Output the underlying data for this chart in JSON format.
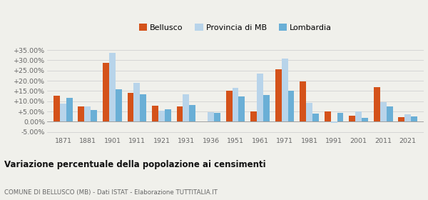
{
  "years": [
    1871,
    1881,
    1901,
    1911,
    1921,
    1931,
    1936,
    1951,
    1961,
    1971,
    1981,
    1991,
    2001,
    2011,
    2021
  ],
  "bellusco": [
    12.7,
    7.6,
    28.8,
    14.2,
    7.7,
    7.5,
    0.3,
    15.3,
    5.0,
    25.8,
    19.7,
    5.1,
    2.8,
    16.9,
    2.1
  ],
  "provincia_mb": [
    9.0,
    7.6,
    33.8,
    19.0,
    5.3,
    13.5,
    4.6,
    16.5,
    23.5,
    30.8,
    9.2,
    -0.5,
    5.0,
    9.5,
    3.5
  ],
  "lombardia": [
    11.7,
    5.7,
    15.7,
    13.3,
    6.0,
    8.0,
    4.4,
    12.5,
    12.9,
    15.3,
    4.1,
    4.3,
    1.9,
    7.3,
    2.7
  ],
  "bar_width": 0.26,
  "color_bellusco": "#d4521a",
  "color_provincia": "#b8d4ea",
  "color_lombardia": "#6aafd6",
  "ylim_min": -7.0,
  "ylim_max": 38.0,
  "yticks": [
    -5,
    0,
    5,
    10,
    15,
    20,
    25,
    30,
    35
  ],
  "title": "Variazione percentuale della popolazione ai censimenti",
  "subtitle": "COMUNE DI BELLUSCO (MB) - Dati ISTAT - Elaborazione TUTTITALIA.IT",
  "legend_labels": [
    "Bellusco",
    "Provincia di MB",
    "Lombardia"
  ],
  "bg_color": "#f0f0eb"
}
